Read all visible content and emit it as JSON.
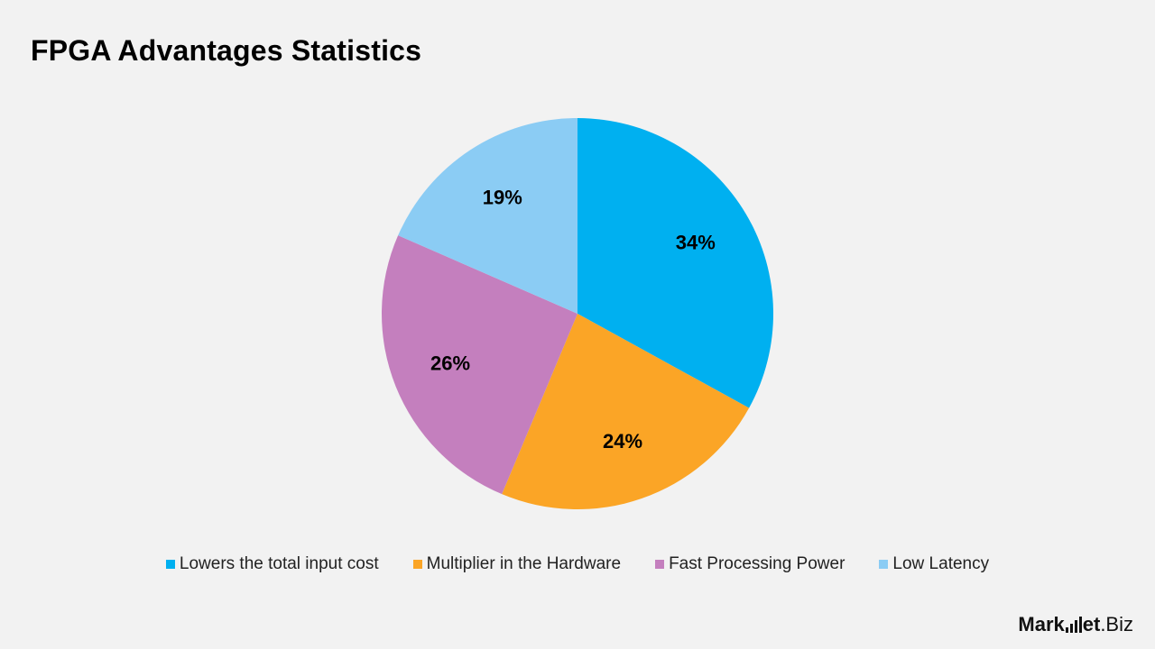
{
  "chart_data": {
    "type": "pie",
    "title": "FPGA Advantages Statistics",
    "categories": [
      "Lowers the total input cost",
      "Multiplier in the Hardware",
      "Fast Processing Power",
      "Low Latency"
    ],
    "values": [
      34,
      24,
      26,
      19
    ],
    "labels": [
      "34%",
      "24%",
      "26%",
      "19%"
    ],
    "colors": [
      "#00b0f0",
      "#fba526",
      "#c47fbe",
      "#8bccf4"
    ],
    "start_angle": "12 o'clock",
    "direction": "clockwise",
    "legend_position": "bottom"
  },
  "brand": {
    "part1": "Mark",
    "part2": "et",
    "part3": ".Biz"
  }
}
